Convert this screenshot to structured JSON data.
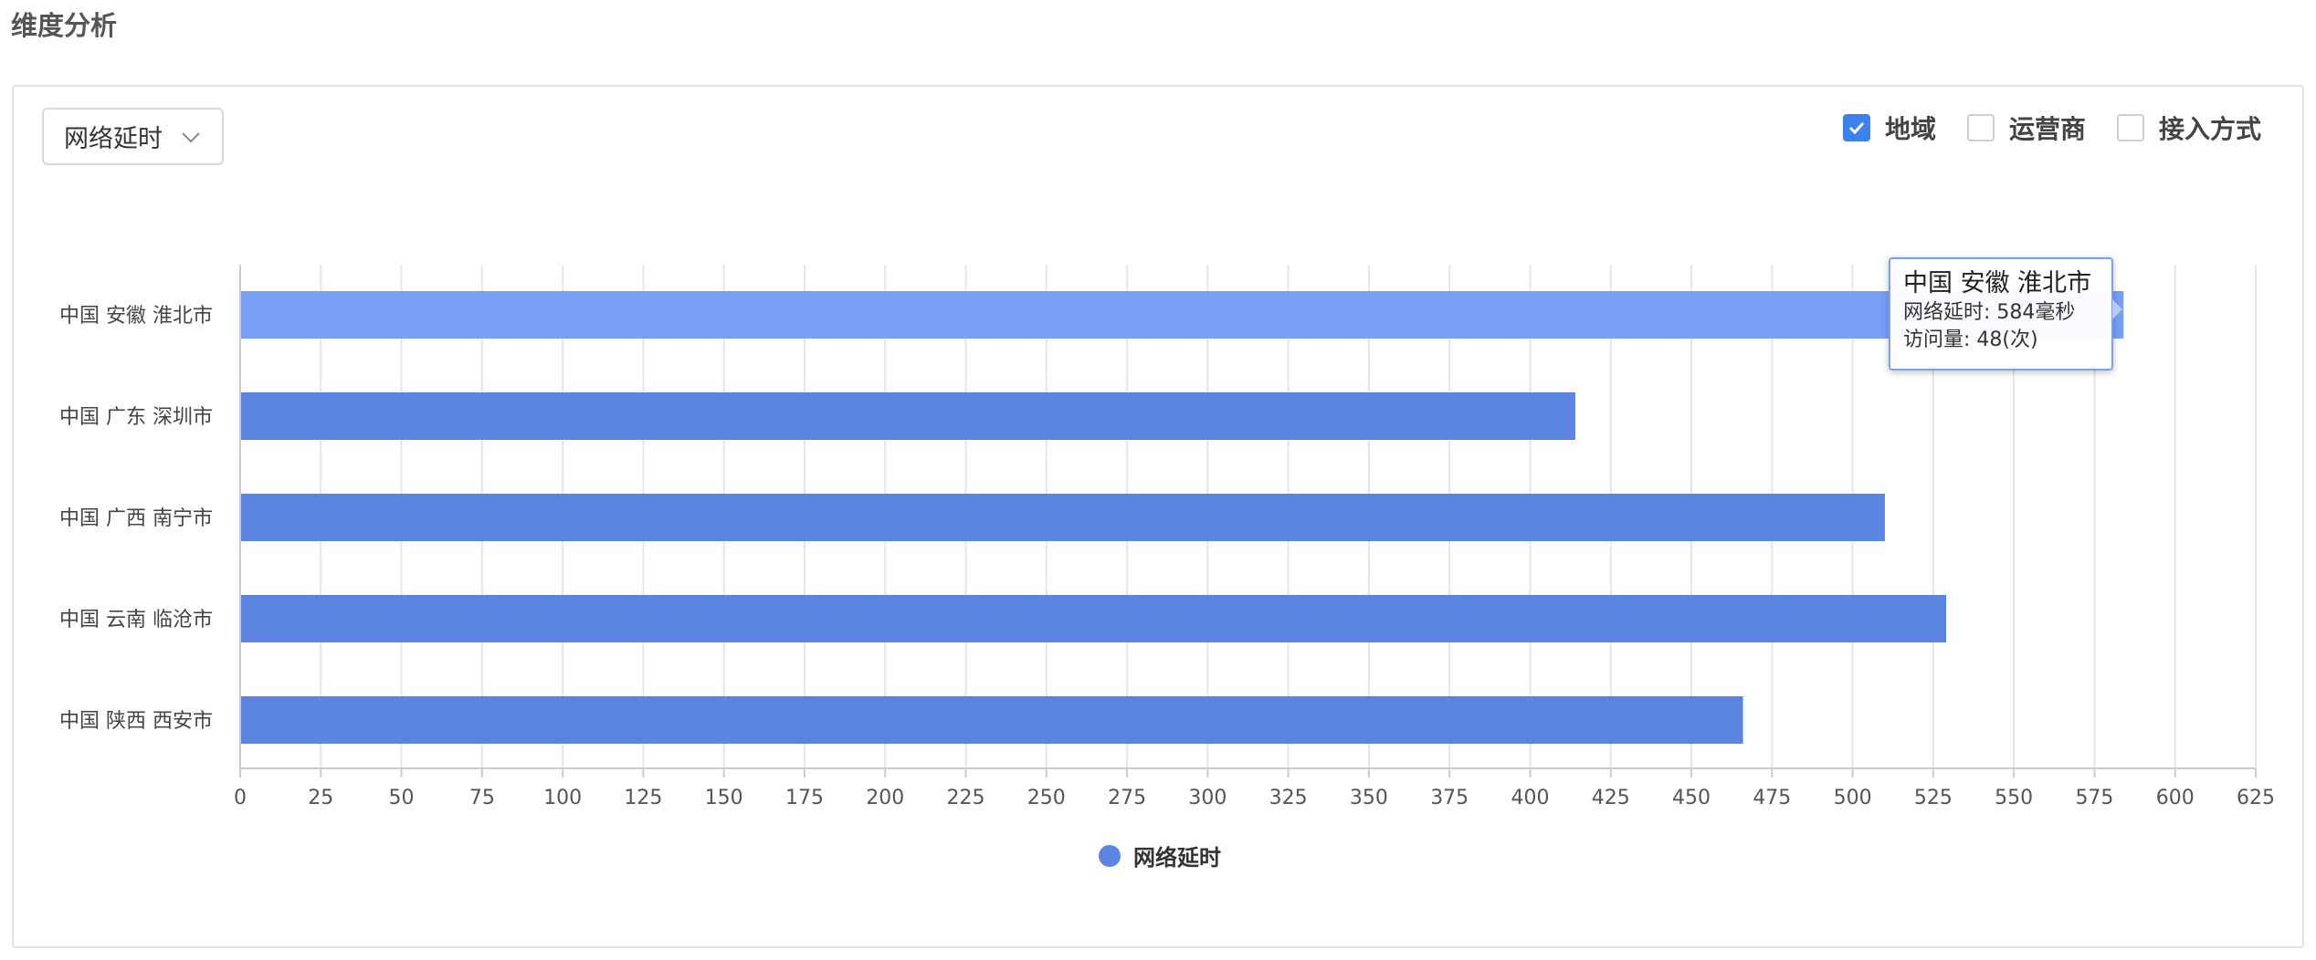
{
  "section": {
    "title": "维度分析"
  },
  "metric_select": {
    "value": "网络延时"
  },
  "dimensions": [
    {
      "label": "地域",
      "checked": true
    },
    {
      "label": "运营商",
      "checked": false
    },
    {
      "label": "接入方式",
      "checked": false
    }
  ],
  "colors": {
    "bar": "#5b84e0",
    "bar_highlight": "#789ff5",
    "check_accent": "#3c82ef"
  },
  "tooltip": {
    "title": "中国 安徽 淮北市",
    "latency": "网络延时: 584毫秒",
    "visits": "访问量: 48(次)"
  },
  "legend": {
    "label": "网络延时"
  },
  "chart_data": {
    "type": "bar",
    "orientation": "horizontal",
    "categories": [
      "中国 安徽 淮北市",
      "中国 广东 深圳市",
      "中国 广西 南宁市",
      "中国 云南 临沧市",
      "中国 陕西 西安市"
    ],
    "series": [
      {
        "name": "网络延时",
        "values": [
          584,
          414,
          510,
          529,
          466
        ]
      }
    ],
    "xlim": [
      0,
      625
    ],
    "xticks": [
      0,
      25,
      50,
      75,
      100,
      125,
      150,
      175,
      200,
      225,
      250,
      275,
      300,
      325,
      350,
      375,
      400,
      425,
      450,
      475,
      500,
      525,
      550,
      575,
      600,
      625
    ],
    "grid": true,
    "legend_position": "bottom",
    "highlighted_category": "中国 安徽 淮北市"
  }
}
